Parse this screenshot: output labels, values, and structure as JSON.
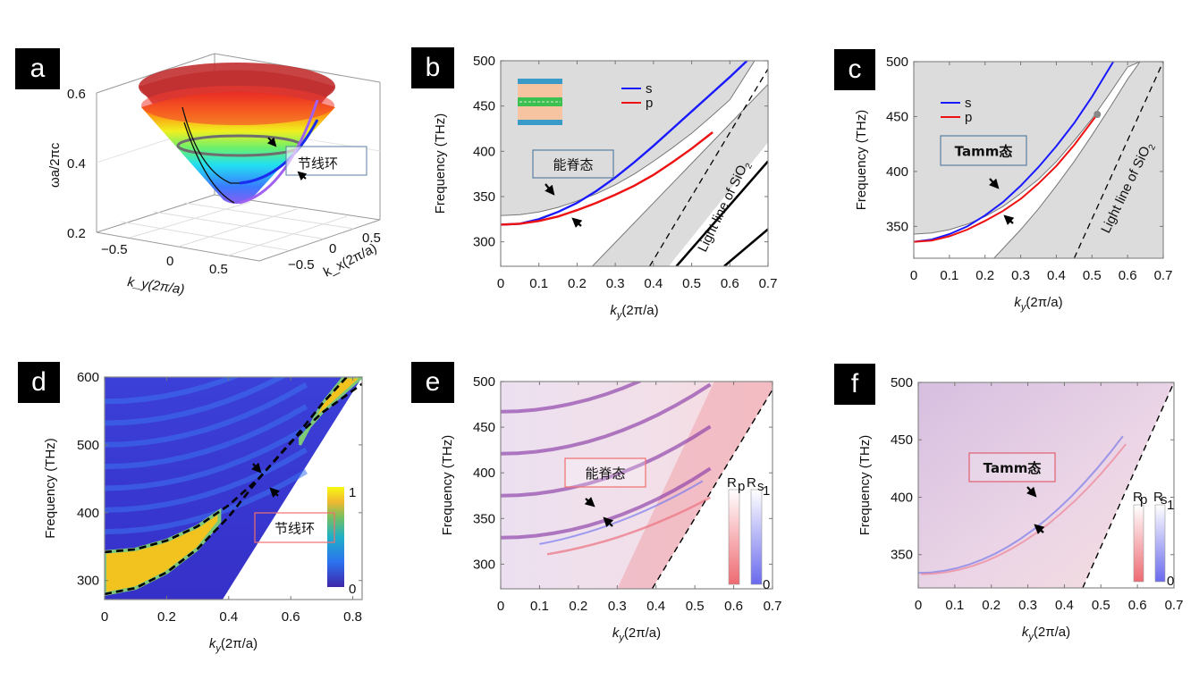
{
  "figure": {
    "panel_labels": [
      "a",
      "b",
      "c",
      "d",
      "e",
      "f"
    ]
  },
  "chart_data": [
    {
      "panel": "a",
      "type": "surface3d",
      "title": "",
      "zlabel": "ωa/2πc",
      "xlabel": "k_y(2π/a)",
      "ylabel": "k_x(2π/a)",
      "zlim": [
        0.2,
        0.6
      ],
      "z_ticks": [
        "0.2",
        "0.4",
        "0.6"
      ],
      "x_ticks": [
        "−0.5",
        "0",
        "0.5"
      ],
      "y_ticks": [
        "−0.5",
        "0",
        "0.5"
      ],
      "annotation": "节线环",
      "colormap": "jet",
      "ring_frequency": 0.45
    },
    {
      "panel": "b",
      "type": "line",
      "xlabel": "k_y(2π/a)",
      "ylabel": "Frequency (THz)",
      "xlim": [
        0,
        0.7
      ],
      "ylim": [
        273,
        500
      ],
      "x_ticks": [
        "0",
        "0.1",
        "0.2",
        "0.3",
        "0.4",
        "0.5",
        "0.6",
        "0.7"
      ],
      "y_ticks": [
        "300",
        "350",
        "400",
        "450",
        "500"
      ],
      "legend": [
        "s",
        "p"
      ],
      "legend_position": "top-center",
      "annotation": "能脊态",
      "light_line_label": "Light line of SiO",
      "light_line_sub": "2",
      "series": [
        {
          "name": "s",
          "color": "#1a1aff",
          "x": [
            0,
            0.05,
            0.1,
            0.15,
            0.2,
            0.25,
            0.3,
            0.35,
            0.4,
            0.45,
            0.5,
            0.55,
            0.6,
            0.645
          ],
          "y": [
            319,
            320,
            325,
            333,
            343,
            356,
            371,
            388,
            406,
            425,
            444,
            463,
            482,
            500
          ]
        },
        {
          "name": "p",
          "color": "#ee1111",
          "x": [
            0,
            0.05,
            0.1,
            0.15,
            0.2,
            0.25,
            0.3,
            0.35,
            0.4,
            0.45,
            0.5,
            0.555
          ],
          "y": [
            319,
            320,
            323,
            328,
            335,
            343,
            352,
            362,
            374,
            388,
            403,
            421
          ]
        },
        {
          "name": "band-edge-upper",
          "color": "#777777",
          "x": [
            0,
            0.05,
            0.1,
            0.15,
            0.2,
            0.25,
            0.3,
            0.35,
            0.4,
            0.45,
            0.5,
            0.55,
            0.6,
            0.665
          ],
          "y": [
            329,
            330,
            333,
            338,
            345,
            353,
            363,
            375,
            389,
            404,
            420,
            438,
            457,
            500
          ]
        },
        {
          "name": "band-edge-lower",
          "color": "#777777",
          "x": [
            0.24,
            0.7
          ],
          "y": [
            273,
            474
          ]
        },
        {
          "name": "light-line",
          "color": "#000000",
          "dash": true,
          "x": [
            0.39,
            0.7
          ],
          "y": [
            273,
            491
          ]
        },
        {
          "name": "guided-1",
          "color": "#000000",
          "x": [
            0.46,
            0.7
          ],
          "y": [
            273,
            389
          ]
        },
        {
          "name": "guided-2",
          "color": "#000000",
          "x": [
            0.585,
            0.7
          ],
          "y": [
            273,
            314
          ]
        }
      ]
    },
    {
      "panel": "c",
      "type": "line",
      "xlabel": "k_y(2π/a)",
      "ylabel": "Frequency (THz)",
      "xlim": [
        0,
        0.7
      ],
      "ylim": [
        321,
        500
      ],
      "x_ticks": [
        "0",
        "0.1",
        "0.2",
        "0.3",
        "0.4",
        "0.5",
        "0.6",
        "0.7"
      ],
      "y_ticks": [
        "350",
        "400",
        "450",
        "500"
      ],
      "legend": [
        "s",
        "p"
      ],
      "legend_position": "top-left",
      "annotation": "Tamm态",
      "light_line_label": "Light line of SiO",
      "light_line_sub": "2",
      "crossing_point": {
        "x": 0.515,
        "y": 452
      },
      "series": [
        {
          "name": "s",
          "color": "#1a1aff",
          "x": [
            0,
            0.05,
            0.1,
            0.15,
            0.2,
            0.25,
            0.3,
            0.35,
            0.4,
            0.45,
            0.5,
            0.56
          ],
          "y": [
            336,
            338,
            343,
            350,
            360,
            372,
            387,
            404,
            423,
            444,
            468,
            500
          ]
        },
        {
          "name": "p",
          "color": "#ee1111",
          "x": [
            0,
            0.05,
            0.1,
            0.15,
            0.2,
            0.25,
            0.3,
            0.35,
            0.4,
            0.45,
            0.51
          ],
          "y": [
            336,
            337,
            341,
            347,
            355,
            364,
            375,
            389,
            405,
            424,
            450
          ]
        },
        {
          "name": "band-edge-upper",
          "color": "#777777",
          "x": [
            0,
            0.05,
            0.1,
            0.15,
            0.2,
            0.25,
            0.3,
            0.35,
            0.4,
            0.45,
            0.5,
            0.55,
            0.6,
            0.635
          ],
          "y": [
            343,
            344,
            347,
            352,
            359,
            368,
            380,
            393,
            409,
            428,
            448,
            471,
            495,
            500
          ]
        },
        {
          "name": "band-edge-lower",
          "color": "#777777",
          "x": [
            0.225,
            0.3,
            0.35,
            0.4,
            0.45,
            0.5,
            0.55,
            0.6,
            0.635
          ],
          "y": [
            321,
            347,
            366,
            387,
            409,
            433,
            458,
            484,
            500
          ]
        },
        {
          "name": "light-line",
          "color": "#000000",
          "dash": true,
          "x": [
            0.45,
            0.7
          ],
          "y": [
            321,
            500
          ]
        }
      ]
    },
    {
      "panel": "d",
      "type": "heatmap",
      "xlabel": "k_y(2π/a)",
      "ylabel": "Frequency (THz)",
      "xlim": [
        0,
        0.83
      ],
      "ylim": [
        272,
        600
      ],
      "x_ticks": [
        "0",
        "0.2",
        "0.4",
        "0.6",
        "0.8"
      ],
      "y_ticks": [
        "300",
        "400",
        "500",
        "600"
      ],
      "colorbar": {
        "min": "0",
        "max": "1",
        "colormap": "parula"
      },
      "annotation": "节线环",
      "crossing_point": {
        "x": 0.5,
        "y": 452
      },
      "series": [
        {
          "name": "dashed-upper",
          "color": "#000000",
          "dash": true,
          "x": [
            0,
            0.1,
            0.2,
            0.3,
            0.4,
            0.5,
            0.6,
            0.7,
            0.78
          ],
          "y": [
            342,
            346,
            359,
            380,
            411,
            452,
            503,
            560,
            600
          ]
        },
        {
          "name": "dashed-lower",
          "color": "#000000",
          "dash": true,
          "x": [
            0,
            0.1,
            0.2,
            0.3,
            0.4,
            0.5,
            0.6,
            0.7,
            0.83
          ],
          "y": [
            280,
            289,
            312,
            347,
            394,
            452,
            504,
            547,
            590
          ]
        }
      ]
    },
    {
      "panel": "e",
      "type": "heatmap",
      "xlabel": "k_y(2π/a)",
      "ylabel": "Frequency (THz)",
      "xlim": [
        0,
        0.7
      ],
      "ylim": [
        273,
        500
      ],
      "x_ticks": [
        "0",
        "0.1",
        "0.2",
        "0.3",
        "0.4",
        "0.5",
        "0.6",
        "0.7"
      ],
      "y_ticks": [
        "300",
        "350",
        "400",
        "450",
        "500"
      ],
      "colorbar": {
        "labels": [
          "R_p",
          "R_s"
        ],
        "min": "0",
        "max": "1"
      },
      "annotation": "能脊态",
      "light_line": {
        "x": [
          0.39,
          0.7
        ],
        "y": [
          273,
          491
        ]
      }
    },
    {
      "panel": "f",
      "type": "heatmap",
      "xlabel": "k_y(2π/a)",
      "ylabel": "Frequency (THz)",
      "xlim": [
        0,
        0.7
      ],
      "ylim": [
        321,
        500
      ],
      "x_ticks": [
        "0",
        "0.1",
        "0.2",
        "0.3",
        "0.4",
        "0.5",
        "0.6",
        "0.7"
      ],
      "y_ticks": [
        "350",
        "400",
        "450",
        "500"
      ],
      "colorbar": {
        "labels": [
          "R_p",
          "R_s"
        ],
        "min": "0",
        "max": "1"
      },
      "annotation": "Tamm态",
      "light_line": {
        "x": [
          0.45,
          0.7
        ],
        "y": [
          321,
          500
        ]
      }
    }
  ]
}
